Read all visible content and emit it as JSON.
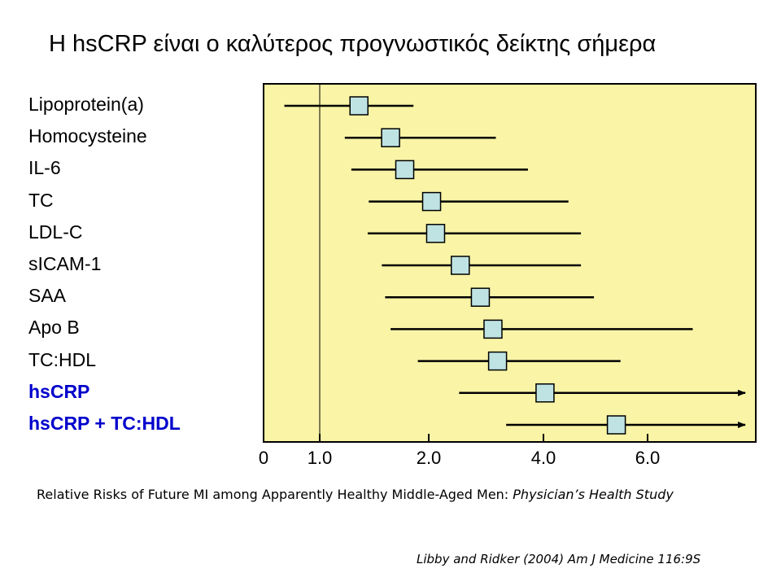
{
  "title": "Η hsCRP είναι ο καλύτερος προγνωστικός δείκτης σήμερα",
  "chart_data": {
    "type": "forest",
    "title": "Η hsCRP είναι ο καλύτερος προγνωστικός δείκτης σήμερα",
    "xlabel": "",
    "ylabel": "",
    "reference_line": 1.0,
    "x_ticks": [
      {
        "label": "0",
        "value": 0
      },
      {
        "label": "1.0",
        "value": 1.0
      },
      {
        "label": "2.0",
        "value": 2.0
      },
      {
        "label": "4.0",
        "value": 4.0
      },
      {
        "label": "6.0",
        "value": 6.0
      }
    ],
    "xlim": [
      0,
      6.8
    ],
    "plot_background": "#f9f4a6",
    "marker_color": "#bfe3e3",
    "highlight_color": "#0000cc",
    "rows": [
      {
        "label": "Lipoprotein(a)",
        "estimate": 1.36,
        "lower": 0.37,
        "upper": 1.86,
        "highlight": false,
        "arrow": false
      },
      {
        "label": "Homocysteine",
        "estimate": 1.65,
        "lower": 1.23,
        "upper": 3.17,
        "highlight": false,
        "arrow": false
      },
      {
        "label": "IL-6",
        "estimate": 1.78,
        "lower": 1.29,
        "upper": 3.73,
        "highlight": false,
        "arrow": false
      },
      {
        "label": "TC",
        "estimate": 2.05,
        "lower": 1.45,
        "upper": 4.48,
        "highlight": false,
        "arrow": false
      },
      {
        "label": "LDL-C",
        "estimate": 2.12,
        "lower": 1.44,
        "upper": 4.72,
        "highlight": false,
        "arrow": false
      },
      {
        "label": "sICAM-1",
        "estimate": 2.55,
        "lower": 1.57,
        "upper": 4.72,
        "highlight": false,
        "arrow": false
      },
      {
        "label": "SAA",
        "estimate": 2.9,
        "lower": 1.6,
        "upper": 4.97,
        "highlight": false,
        "arrow": false
      },
      {
        "label": "Apo B",
        "estimate": 3.12,
        "lower": 1.65,
        "upper": 6.37,
        "highlight": false,
        "arrow": false
      },
      {
        "label": "TC:HDL",
        "estimate": 3.2,
        "lower": 1.9,
        "upper": 5.48,
        "highlight": false,
        "arrow": false
      },
      {
        "label": "hsCRP",
        "estimate": 4.03,
        "lower": 2.53,
        "upper": 6.8,
        "highlight": true,
        "arrow": true
      },
      {
        "label": "hsCRP + TC:HDL",
        "estimate": 5.4,
        "lower": 3.35,
        "upper": 6.8,
        "highlight": true,
        "arrow": true
      }
    ]
  },
  "caption": {
    "text": "Relative Risks of Future MI among Apparently Healthy Middle-Aged Men: ",
    "italic": "Physician’s Health Study"
  },
  "citation": "Libby and Ridker (2004) Am J Medicine 116:9S"
}
